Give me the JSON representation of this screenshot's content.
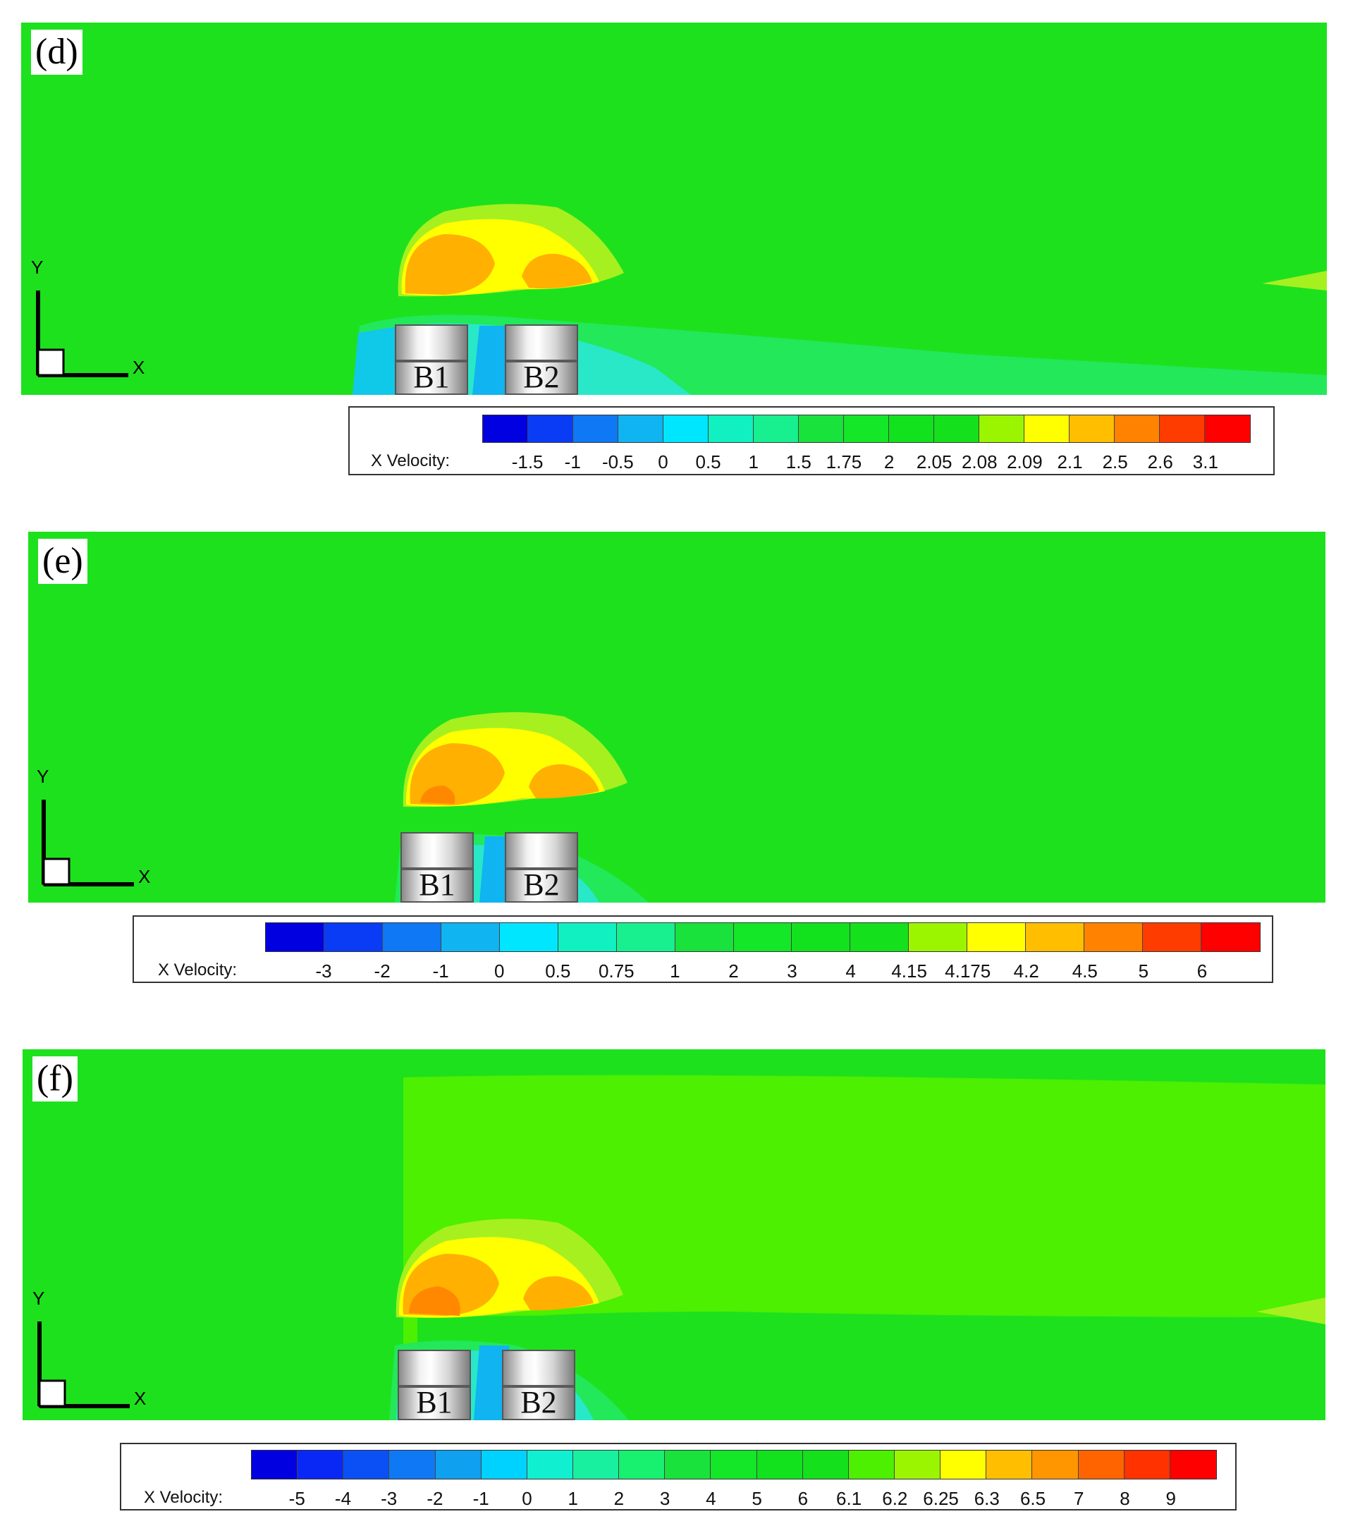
{
  "panels": [
    {
      "tag": "(d)",
      "axis_x": "X",
      "axis_y": "Y",
      "blocks": [
        "B1",
        "B2"
      ],
      "legend": {
        "title": "X Velocity:",
        "ticks": [
          "-1.5",
          "-1",
          "-0.5",
          "0",
          "0.5",
          "1",
          "1.5",
          "1.75",
          "2",
          "2.05",
          "2.08",
          "2.09",
          "2.1",
          "2.5",
          "2.6",
          "3.1"
        ],
        "colors": [
          "#0000e0",
          "#0a3cf5",
          "#0f78f5",
          "#10b4f0",
          "#00e6ff",
          "#10f0c0",
          "#18f090",
          "#19e23c",
          "#14e628",
          "#12e21e",
          "#14e01c",
          "#9cf500",
          "#ffff00",
          "#ffbe00",
          "#ff8200",
          "#ff3c00",
          "#ff0000"
        ]
      }
    },
    {
      "tag": "(e)",
      "axis_x": "X",
      "axis_y": "Y",
      "blocks": [
        "B1",
        "B2"
      ],
      "legend": {
        "title": "X Velocity:",
        "ticks": [
          "-3",
          "-2",
          "-1",
          "0",
          "0.5",
          "0.75",
          "1",
          "2",
          "3",
          "4",
          "4.15",
          "4.175",
          "4.2",
          "4.5",
          "5",
          "6"
        ],
        "colors": [
          "#0000e0",
          "#0a3cf5",
          "#0f78f5",
          "#10b4f0",
          "#00e6ff",
          "#10f0c0",
          "#18f090",
          "#19e23c",
          "#14e628",
          "#12e21e",
          "#14e01c",
          "#9cf500",
          "#ffff00",
          "#ffbe00",
          "#ff8200",
          "#ff3c00",
          "#ff0000"
        ]
      }
    },
    {
      "tag": "(f)",
      "axis_x": "X",
      "axis_y": "Y",
      "blocks": [
        "B1",
        "B2"
      ],
      "legend": {
        "title": "X Velocity:",
        "ticks": [
          "-5",
          "-4",
          "-3",
          "-2",
          "-1",
          "0",
          "1",
          "2",
          "3",
          "4",
          "5",
          "6",
          "6.1",
          "6.2",
          "6.25",
          "6.3",
          "6.5",
          "7",
          "8",
          "9"
        ],
        "colors": [
          "#0000e0",
          "#0a28f5",
          "#0a50f5",
          "#0f78f5",
          "#10a0f0",
          "#00d2ff",
          "#10f0d0",
          "#18f0a0",
          "#18f070",
          "#19e23c",
          "#14e628",
          "#12e21e",
          "#14e01c",
          "#4cf000",
          "#9cf500",
          "#ffff00",
          "#ffbe00",
          "#ff9600",
          "#ff6400",
          "#ff3200",
          "#ff0000"
        ]
      }
    }
  ],
  "colors": {
    "background_flow": "#1ee11e",
    "upper_flow_f": "#4cf000",
    "wake_light_green": "#a6f020",
    "recirculation_orange": "#ffb000",
    "core_dark_orange": "#ff8800",
    "wake_cyan": "#28e8c8",
    "gap_blue": "#10b4f0"
  }
}
